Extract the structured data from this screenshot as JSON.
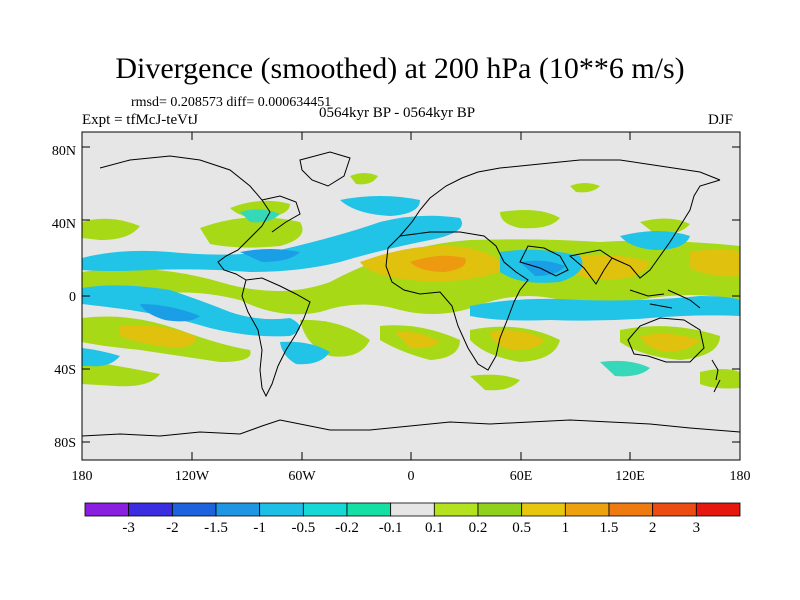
{
  "header": {
    "title": "Divergence (smoothed) at 200 hPa (10**6 m/s)",
    "stats": "rmsd= 0.208573 diff= 0.000634451",
    "experiment": "Expt = tfMcJ-teVtJ",
    "period": "0564kyr BP - 0564kyr BP",
    "season": "DJF"
  },
  "axes": {
    "lat_labels": [
      "80N",
      "40N",
      "0",
      "40S",
      "80S"
    ],
    "lon_labels": [
      "180",
      "120W",
      "60W",
      "0",
      "60E",
      "120E",
      "180"
    ]
  },
  "colorbar": {
    "labels": [
      "-3",
      "-2",
      "-1.5",
      "-1",
      "-0.5",
      "-0.2",
      "-0.1",
      "0.1",
      "0.2",
      "0.5",
      "1",
      "1.5",
      "2",
      "3"
    ],
    "colors": [
      "#8a1fe0",
      "#3a2ee0",
      "#1c63dd",
      "#1e96e3",
      "#1ebfe6",
      "#16d9d6",
      "#14e0a6",
      "#e6e6e6",
      "#b4e21e",
      "#8fd11c",
      "#e7c70e",
      "#eea10e",
      "#ef7a0f",
      "#ec4b12",
      "#e5170f"
    ]
  },
  "colors": {
    "ocean_fill": "#e6e6e6",
    "weak_pos": "#a7d917",
    "pos": "#dfc10e",
    "strong_pos": "#ee9a10",
    "weak_neg": "#35d8b8",
    "neg": "#21c4e6",
    "strong_neg": "#1a9ee6",
    "coast": "#000000"
  }
}
